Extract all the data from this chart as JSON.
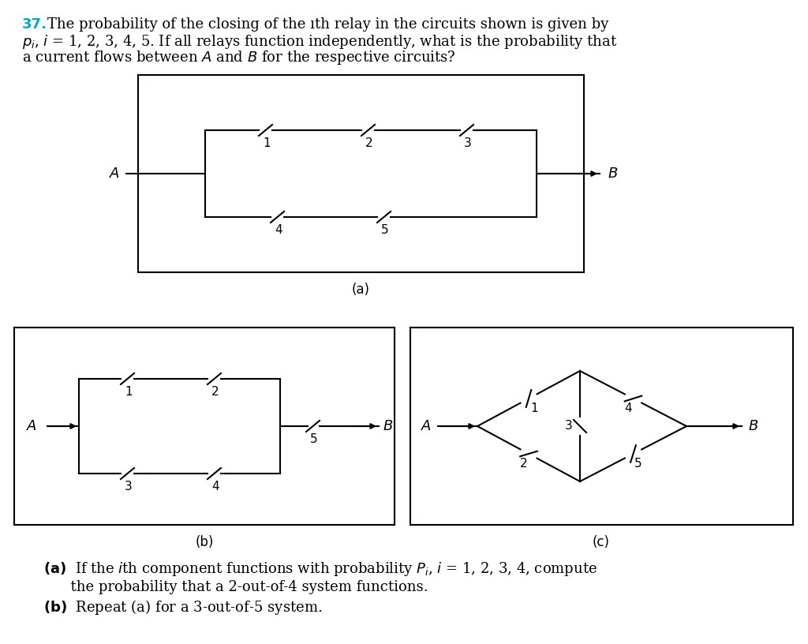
{
  "bg_color": "#ffffff",
  "text_color": "#000000",
  "cyan_color": "#00aacc",
  "line_color": "#000000",
  "title_number": "37.",
  "title_line1": " The probability of the closing of the ıth relay in the circuits shown is given by",
  "title_line2": "pᵢ, i = 1, 2, 3, 4, 5. If all relays function independently, what is the probability that",
  "title_line3": "a current flows between A and B for the respective circuits?",
  "caption_a": "(a)",
  "caption_b": "(b)",
  "caption_c": "(c)",
  "bottom_a": "(a) If the ıth component functions with probability Pᵢ, i = 1, 2, 3, 4, compute",
  "bottom_a2": "   the probability that a 2-out-of-4 system functions.",
  "bottom_b": "(b) Repeat (a) for a 3-out-of-5 system.",
  "font_size_title": 13,
  "font_size_caption": 12,
  "font_size_label": 12,
  "font_size_bottom": 13
}
